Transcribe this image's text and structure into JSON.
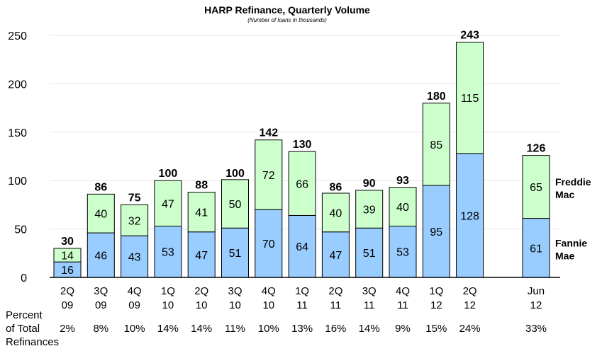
{
  "chart_data": {
    "type": "bar",
    "stacked": true,
    "title": "HARP Refinance, Quarterly Volume",
    "subtitle": "(Number of loans in thousands)",
    "xlabel": "",
    "ylabel": "",
    "ylim": [
      0,
      250
    ],
    "yticks": [
      0,
      50,
      100,
      150,
      200,
      250
    ],
    "grid": true,
    "categories": [
      [
        "2Q",
        "09"
      ],
      [
        "3Q",
        "09"
      ],
      [
        "4Q",
        "09"
      ],
      [
        "1Q",
        "10"
      ],
      [
        "2Q",
        "10"
      ],
      [
        "3Q",
        "10"
      ],
      [
        "4Q",
        "10"
      ],
      [
        "1Q",
        "11"
      ],
      [
        "2Q",
        "11"
      ],
      [
        "3Q",
        "11"
      ],
      [
        "4Q",
        "11"
      ],
      [
        "1Q",
        "12"
      ],
      [
        "2Q",
        "12"
      ],
      [
        "Jun",
        "12"
      ]
    ],
    "series": [
      {
        "name": "Fannie Mae",
        "legend": [
          "Fannie",
          "Mae"
        ],
        "color": "#99ccff",
        "values": [
          16,
          46,
          43,
          53,
          47,
          51,
          70,
          64,
          47,
          51,
          53,
          95,
          128,
          61
        ]
      },
      {
        "name": "Freddie Mac",
        "legend": [
          "Freddie",
          "Mac"
        ],
        "color": "#ccffcc",
        "values": [
          14,
          40,
          32,
          47,
          41,
          50,
          72,
          66,
          40,
          39,
          40,
          85,
          115,
          65
        ]
      }
    ],
    "totals": [
      30,
      86,
      75,
      100,
      88,
      100,
      142,
      130,
      86,
      90,
      93,
      180,
      243,
      126
    ],
    "percent_row": {
      "label": [
        "Percent",
        "of Total",
        "Refinances"
      ],
      "values": [
        "2%",
        "8%",
        "10%",
        "14%",
        "14%",
        "11%",
        "10%",
        "13%",
        "16%",
        "14%",
        "9%",
        "15%",
        "24%",
        "33%"
      ]
    }
  }
}
